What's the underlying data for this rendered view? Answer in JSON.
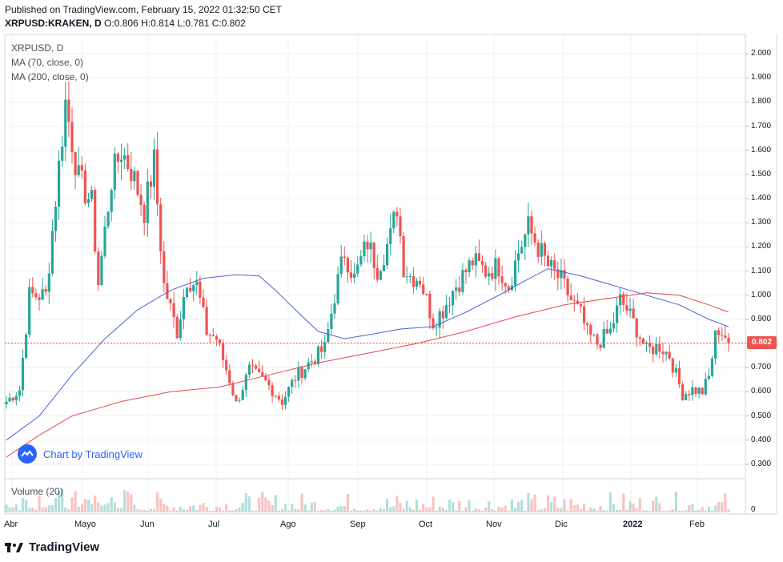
{
  "header": {
    "published": "Published on TradingView.com, February 15, 2022 01:32:50 CET",
    "symbol": "XRPUSD:KRAKEN, D",
    "ohlc": "O:0.806 H:0.814 L:0.781 C:0.802"
  },
  "legend": {
    "symbol": "XRPUSD, D",
    "ma1": "MA (70, close, 0)",
    "ma2": "MA (200, close, 0)"
  },
  "volume_label": "Volume (20)",
  "watermark": "Chart by TradingView",
  "footer_logo": "TradingView",
  "last_price": "0.802",
  "colors": {
    "up": "#26a69a",
    "down": "#ef5350",
    "ma70": "#4d5fd6",
    "ma200": "#e5484d",
    "grid": "#eef0f3"
  },
  "chart_data": {
    "type": "candlestick",
    "yaxis": {
      "ticks": [
        "2.000",
        "1.900",
        "1.800",
        "1.700",
        "1.600",
        "1.500",
        "1.400",
        "1.300",
        "1.200",
        "1.100",
        "1.000",
        "0.900",
        "0.800",
        "0.700",
        "0.600",
        "0.500",
        "0.400",
        "0.300"
      ],
      "range": [
        0.24,
        2.08
      ]
    },
    "xaxis": {
      "ticks": [
        "Abr",
        "Mayo",
        "Jun",
        "Jul",
        "Ago",
        "Sep",
        "Oct",
        "Nov",
        "Dic",
        "2022",
        "Feb"
      ]
    },
    "volume_axis_tick": "0",
    "anchors_close": [
      [
        0,
        0.56
      ],
      [
        4,
        0.61
      ],
      [
        7,
        1.0
      ],
      [
        12,
        1.0
      ],
      [
        15,
        1.4
      ],
      [
        18,
        1.8
      ],
      [
        22,
        1.48
      ],
      [
        26,
        1.38
      ],
      [
        28,
        1.05
      ],
      [
        32,
        1.48
      ],
      [
        35,
        1.6
      ],
      [
        38,
        1.52
      ],
      [
        42,
        1.35
      ],
      [
        45,
        1.55
      ],
      [
        48,
        1.04
      ],
      [
        52,
        0.85
      ],
      [
        55,
        1.07
      ],
      [
        58,
        1.04
      ],
      [
        61,
        0.85
      ],
      [
        64,
        0.82
      ],
      [
        68,
        0.65
      ],
      [
        70,
        0.55
      ],
      [
        74,
        0.69
      ],
      [
        79,
        0.64
      ],
      [
        84,
        0.56
      ],
      [
        88,
        0.66
      ],
      [
        93,
        0.73
      ],
      [
        97,
        0.78
      ],
      [
        100,
        1.0
      ],
      [
        103,
        1.18
      ],
      [
        106,
        1.07
      ],
      [
        110,
        1.22
      ],
      [
        113,
        1.11
      ],
      [
        117,
        1.24
      ],
      [
        119,
        1.37
      ],
      [
        121,
        1.12
      ],
      [
        123,
        1.08
      ],
      [
        126,
        1.07
      ],
      [
        130,
        0.89
      ],
      [
        133,
        0.94
      ],
      [
        136,
        1.02
      ],
      [
        139,
        1.08
      ],
      [
        142,
        1.14
      ],
      [
        146,
        1.1
      ],
      [
        150,
        1.12
      ],
      [
        153,
        1.04
      ],
      [
        156,
        1.18
      ],
      [
        159,
        1.28
      ],
      [
        162,
        1.2
      ],
      [
        165,
        1.12
      ],
      [
        169,
        1.06
      ],
      [
        172,
        0.98
      ],
      [
        175,
        0.92
      ],
      [
        177,
        0.84
      ],
      [
        180,
        0.8
      ],
      [
        184,
        0.85
      ],
      [
        187,
        0.98
      ],
      [
        189,
        0.94
      ],
      [
        192,
        0.86
      ],
      [
        195,
        0.77
      ],
      [
        199,
        0.79
      ],
      [
        202,
        0.75
      ],
      [
        206,
        0.59
      ],
      [
        209,
        0.61
      ],
      [
        212,
        0.6
      ],
      [
        214,
        0.66
      ],
      [
        216,
        0.83
      ],
      [
        217,
        0.86
      ],
      [
        219,
        0.83
      ],
      [
        220,
        0.802
      ]
    ],
    "moving_averages": [
      {
        "name": "MA (70, close, 0)",
        "points": [
          [
            0,
            0.4
          ],
          [
            10,
            0.5
          ],
          [
            20,
            0.67
          ],
          [
            30,
            0.82
          ],
          [
            40,
            0.94
          ],
          [
            50,
            1.02
          ],
          [
            60,
            1.07
          ],
          [
            70,
            1.085
          ],
          [
            77,
            1.08
          ],
          [
            82,
            1.02
          ],
          [
            88,
            0.94
          ],
          [
            95,
            0.85
          ],
          [
            103,
            0.82
          ],
          [
            112,
            0.84
          ],
          [
            120,
            0.86
          ],
          [
            130,
            0.87
          ],
          [
            140,
            0.93
          ],
          [
            150,
            1.0
          ],
          [
            158,
            1.06
          ],
          [
            165,
            1.11
          ],
          [
            175,
            1.08
          ],
          [
            185,
            1.04
          ],
          [
            195,
            1.0
          ],
          [
            205,
            0.96
          ],
          [
            214,
            0.9
          ],
          [
            220,
            0.87
          ]
        ]
      },
      {
        "name": "MA (200, close, 0)",
        "points": [
          [
            0,
            0.33
          ],
          [
            10,
            0.42
          ],
          [
            20,
            0.5
          ],
          [
            35,
            0.56
          ],
          [
            50,
            0.6
          ],
          [
            65,
            0.62
          ],
          [
            80,
            0.67
          ],
          [
            95,
            0.72
          ],
          [
            110,
            0.76
          ],
          [
            125,
            0.8
          ],
          [
            140,
            0.85
          ],
          [
            155,
            0.91
          ],
          [
            170,
            0.96
          ],
          [
            185,
            0.99
          ],
          [
            195,
            1.01
          ],
          [
            205,
            1.0
          ],
          [
            214,
            0.96
          ],
          [
            220,
            0.93
          ]
        ]
      }
    ]
  }
}
